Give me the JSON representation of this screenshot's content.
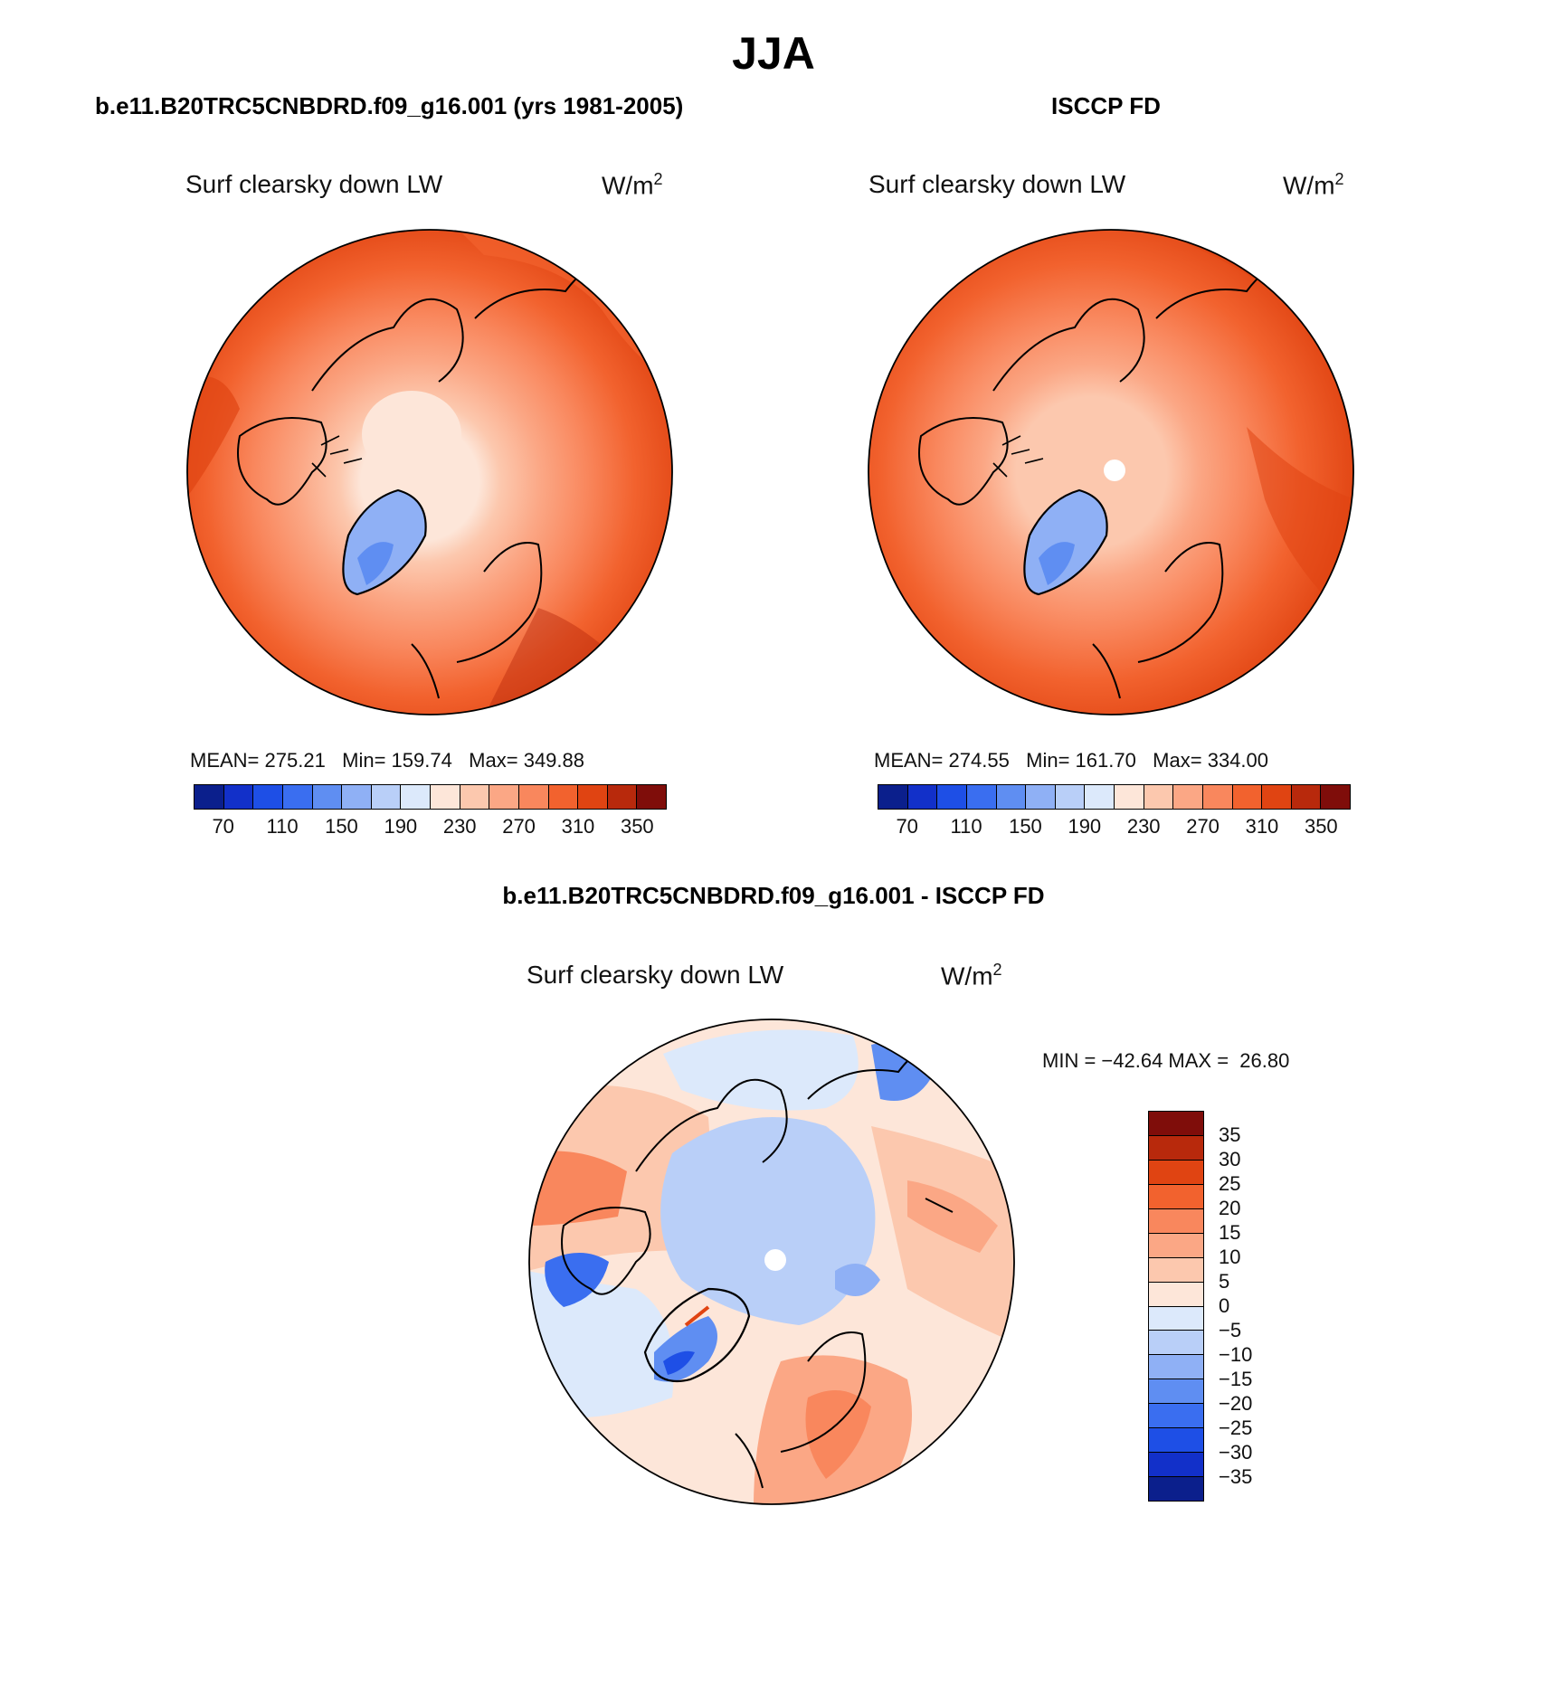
{
  "title": "JJA",
  "panels": {
    "left": {
      "title": "b.e11.B20TRC5CNBDRD.f09_g16.001 (yrs 1981-2005)",
      "field": "Surf clearsky down LW",
      "units": "W/m",
      "units_sup": "2",
      "stats": "MEAN= 275.21   Min= 159.74   Max= 349.88",
      "ticks": [
        "70",
        "110",
        "150",
        "190",
        "230",
        "270",
        "310",
        "350"
      ]
    },
    "right": {
      "title": "ISCCP FD",
      "field": "Surf clearsky down LW",
      "units": "W/m",
      "units_sup": "2",
      "stats": "MEAN= 274.55   Min= 161.70   Max= 334.00",
      "ticks": [
        "70",
        "110",
        "150",
        "190",
        "230",
        "270",
        "310",
        "350"
      ]
    },
    "diff": {
      "title": "b.e11.B20TRC5CNBDRD.f09_g16.001 - ISCCP FD",
      "field": "Surf clearsky down LW",
      "units": "W/m",
      "units_sup": "2",
      "stats": "MIN = −42.64 MAX =  26.80",
      "ticks": [
        "35",
        "30",
        "25",
        "20",
        "15",
        "10",
        "5",
        "0",
        "−5",
        "−10",
        "−15",
        "−20",
        "−25",
        "−30",
        "−35"
      ]
    }
  },
  "colors": {
    "abs_scale": [
      "#0b1f8c",
      "#1230c9",
      "#1e4fe6",
      "#3a6ef0",
      "#5f8ef2",
      "#8fb0f5",
      "#b9cff8",
      "#dce9fb",
      "#fde6d9",
      "#fcc8ae",
      "#fba785",
      "#f9875d",
      "#f2622e",
      "#e04412",
      "#b8290c",
      "#7f0d0a"
    ],
    "diff_scale": [
      "#7f0d0a",
      "#b8290c",
      "#e04412",
      "#f2622e",
      "#f9875d",
      "#fba785",
      "#fcc8ae",
      "#fde6d9",
      "#dce9fb",
      "#b9cff8",
      "#8fb0f5",
      "#5f8ef2",
      "#3a6ef0",
      "#1e4fe6",
      "#1230c9",
      "#0b1f8c"
    ]
  }
}
